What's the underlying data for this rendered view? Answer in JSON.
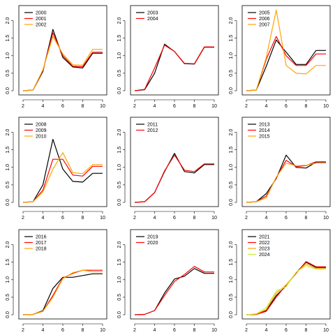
{
  "chart_data": [
    {
      "type": "line",
      "x": [
        2,
        3,
        4,
        5,
        6,
        7,
        8,
        9,
        10
      ],
      "xticks": [
        2,
        4,
        6,
        8,
        10
      ],
      "yticks": [
        "0.0",
        "0.5",
        "1.0",
        "1.5",
        "2.0"
      ],
      "ylim": [
        0,
        2.35
      ],
      "legend_position": "top-left",
      "series": [
        {
          "name": "2000",
          "color": "#000000",
          "values": [
            0.0,
            0.02,
            0.55,
            1.75,
            0.95,
            0.68,
            0.65,
            1.07,
            1.07
          ]
        },
        {
          "name": "2001",
          "color": "#ff0000",
          "values": [
            0.0,
            0.02,
            0.58,
            1.65,
            1.0,
            0.7,
            0.69,
            1.1,
            1.1
          ]
        },
        {
          "name": "2002",
          "color": "#ffa500",
          "values": [
            0.0,
            0.02,
            0.6,
            1.55,
            1.05,
            0.74,
            0.73,
            1.18,
            1.18
          ]
        }
      ]
    },
    {
      "type": "line",
      "x": [
        2,
        3,
        4,
        5,
        6,
        7,
        8,
        9,
        10
      ],
      "xticks": [
        2,
        4,
        6,
        8,
        10
      ],
      "yticks": [
        "0.0",
        "0.5",
        "1.0",
        "1.5",
        "2.0"
      ],
      "ylim": [
        0,
        2.35
      ],
      "legend_position": "top-left",
      "series": [
        {
          "name": "2003",
          "color": "#000000",
          "values": [
            0.0,
            0.03,
            0.5,
            1.33,
            1.12,
            0.77,
            0.76,
            1.24,
            1.24
          ]
        },
        {
          "name": "2004",
          "color": "#ff0000",
          "values": [
            0.0,
            0.04,
            0.65,
            1.3,
            1.12,
            0.78,
            0.77,
            1.25,
            1.25
          ]
        }
      ]
    },
    {
      "type": "line",
      "x": [
        2,
        3,
        4,
        5,
        6,
        7,
        8,
        9,
        10
      ],
      "xticks": [
        2,
        4,
        6,
        8,
        10
      ],
      "yticks": [
        "0.0",
        "0.5",
        "1.0",
        "1.5",
        "2.0"
      ],
      "ylim": [
        0,
        2.35
      ],
      "legend_position": "top-left",
      "series": [
        {
          "name": "2005",
          "color": "#000000",
          "values": [
            0.0,
            0.02,
            0.7,
            1.45,
            1.1,
            0.75,
            0.75,
            1.15,
            1.15
          ]
        },
        {
          "name": "2006",
          "color": "#ff0000",
          "values": [
            0.0,
            0.02,
            0.9,
            1.55,
            1.0,
            0.72,
            0.72,
            1.05,
            1.05
          ]
        },
        {
          "name": "2007",
          "color": "#ffa500",
          "values": [
            0.0,
            0.02,
            0.95,
            2.3,
            0.72,
            0.5,
            0.48,
            0.72,
            0.72
          ]
        }
      ]
    },
    {
      "type": "line",
      "x": [
        2,
        3,
        4,
        5,
        6,
        7,
        8,
        9,
        10
      ],
      "xticks": [
        2,
        4,
        6,
        8,
        10
      ],
      "yticks": [
        "0.0",
        "0.5",
        "1.0",
        "1.5",
        "2.0"
      ],
      "ylim": [
        0,
        2.35
      ],
      "legend_position": "top-left",
      "series": [
        {
          "name": "2008",
          "color": "#000000",
          "values": [
            0.0,
            0.02,
            0.5,
            1.8,
            0.95,
            0.6,
            0.58,
            0.83,
            0.83
          ]
        },
        {
          "name": "2009",
          "color": "#ff0000",
          "values": [
            0.0,
            0.02,
            0.35,
            1.23,
            1.23,
            0.78,
            0.75,
            1.03,
            1.03
          ]
        },
        {
          "name": "2010",
          "color": "#ffa500",
          "values": [
            0.0,
            0.02,
            0.3,
            0.95,
            1.42,
            0.85,
            0.82,
            1.08,
            1.08
          ]
        }
      ]
    },
    {
      "type": "line",
      "x": [
        2,
        3,
        4,
        5,
        6,
        7,
        8,
        9,
        10
      ],
      "xticks": [
        2,
        4,
        6,
        8,
        10
      ],
      "yticks": [
        "0.0",
        "0.5",
        "1.0",
        "1.5",
        "2.0"
      ],
      "ylim": [
        0,
        2.35
      ],
      "legend_position": "top-left",
      "series": [
        {
          "name": "2011",
          "color": "#000000",
          "values": [
            0.0,
            0.02,
            0.28,
            0.88,
            1.4,
            0.88,
            0.84,
            1.08,
            1.08
          ]
        },
        {
          "name": "2012",
          "color": "#ff0000",
          "values": [
            0.0,
            0.02,
            0.28,
            0.9,
            1.35,
            0.92,
            0.88,
            1.1,
            1.1
          ]
        }
      ]
    },
    {
      "type": "line",
      "x": [
        2,
        3,
        4,
        5,
        6,
        7,
        8,
        9,
        10
      ],
      "xticks": [
        2,
        4,
        6,
        8,
        10
      ],
      "yticks": [
        "0.0",
        "0.5",
        "1.0",
        "1.5",
        "2.0"
      ],
      "ylim": [
        0,
        2.35
      ],
      "legend_position": "top-left",
      "series": [
        {
          "name": "2013",
          "color": "#000000",
          "values": [
            0.0,
            0.02,
            0.25,
            0.68,
            1.35,
            1.0,
            0.98,
            1.15,
            1.15
          ]
        },
        {
          "name": "2014",
          "color": "#ff0000",
          "values": [
            0.0,
            0.02,
            0.18,
            0.7,
            1.2,
            1.02,
            1.05,
            1.16,
            1.16
          ]
        },
        {
          "name": "2015",
          "color": "#ffa500",
          "values": [
            0.0,
            0.02,
            0.13,
            0.72,
            1.12,
            1.05,
            1.06,
            1.12,
            1.12
          ]
        }
      ]
    },
    {
      "type": "line",
      "x": [
        2,
        3,
        4,
        5,
        6,
        7,
        8,
        9,
        10
      ],
      "xticks": [
        2,
        4,
        6,
        8,
        10
      ],
      "yticks": [
        "0.0",
        "0.5",
        "1.0",
        "1.5",
        "2.0"
      ],
      "ylim": [
        0,
        2.35
      ],
      "legend_position": "top-left",
      "series": [
        {
          "name": "2016",
          "color": "#000000",
          "values": [
            0.0,
            0.01,
            0.12,
            0.75,
            1.07,
            1.07,
            1.12,
            1.17,
            1.17
          ]
        },
        {
          "name": "2017",
          "color": "#ff0000",
          "values": [
            0.0,
            0.01,
            0.1,
            0.55,
            1.05,
            1.18,
            1.27,
            1.27,
            1.27
          ]
        },
        {
          "name": "2018",
          "color": "#ffa500",
          "values": [
            0.0,
            0.01,
            0.1,
            0.5,
            1.03,
            1.2,
            1.27,
            1.23,
            1.23
          ]
        }
      ]
    },
    {
      "type": "line",
      "x": [
        2,
        3,
        4,
        5,
        6,
        7,
        8,
        9,
        10
      ],
      "xticks": [
        2,
        4,
        6,
        8,
        10
      ],
      "yticks": [
        "0.0",
        "0.5",
        "1.0",
        "1.5",
        "2.0"
      ],
      "ylim": [
        0,
        2.35
      ],
      "legend_position": "top-left",
      "series": [
        {
          "name": "2019",
          "color": "#000000",
          "values": [
            0.0,
            0.01,
            0.12,
            0.62,
            1.02,
            1.1,
            1.32,
            1.18,
            1.18
          ]
        },
        {
          "name": "2020",
          "color": "#ff0000",
          "values": [
            0.0,
            0.01,
            0.12,
            0.55,
            0.95,
            1.15,
            1.38,
            1.22,
            1.22
          ]
        }
      ]
    },
    {
      "type": "line",
      "x": [
        2,
        3,
        4,
        5,
        6,
        7,
        8,
        9,
        10
      ],
      "xticks": [
        2,
        4,
        6,
        8,
        10
      ],
      "yticks": [
        "0.0",
        "0.5",
        "1.0",
        "1.5",
        "2.0"
      ],
      "ylim": [
        0,
        2.35
      ],
      "legend_position": "top-left",
      "series": [
        {
          "name": "2021",
          "color": "#000000",
          "values": [
            0.0,
            0.01,
            0.12,
            0.55,
            0.82,
            1.2,
            1.5,
            1.35,
            1.35
          ]
        },
        {
          "name": "2022",
          "color": "#ff0000",
          "values": [
            0.0,
            0.01,
            0.1,
            0.5,
            0.85,
            1.18,
            1.52,
            1.37,
            1.37
          ]
        },
        {
          "name": "2023",
          "color": "#ffa500",
          "values": [
            0.0,
            0.02,
            0.15,
            0.62,
            0.85,
            1.2,
            1.45,
            1.32,
            1.32
          ]
        },
        {
          "name": "2024",
          "color": "#ccee33",
          "values": [
            0.0,
            0.03,
            0.2,
            0.68,
            0.8,
            1.22,
            1.4,
            1.3,
            1.3
          ]
        }
      ]
    }
  ]
}
